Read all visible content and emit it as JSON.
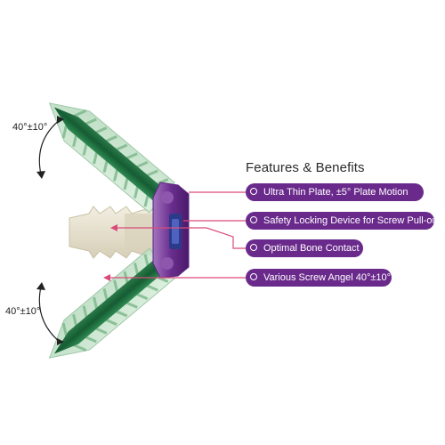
{
  "heading": "Features & Benefits",
  "features": [
    {
      "label": "Ultra Thin Plate, ±5° Plate Motion"
    },
    {
      "label": "Safety Locking Device for Screw Pull-out"
    },
    {
      "label": "Optimal Bone Contact"
    },
    {
      "label": "Various Screw Angel 40°±10°"
    }
  ],
  "angles": {
    "top": "40°±10°",
    "bottom": "40°±10°"
  },
  "colors": {
    "pill": "#6a2a8c",
    "leader": "#d94b7a",
    "screw_core": "#1f6a3e",
    "screw_glass": "#bfe0c6",
    "implant": "#e8e3d2",
    "plate": "#7b3f9e"
  }
}
